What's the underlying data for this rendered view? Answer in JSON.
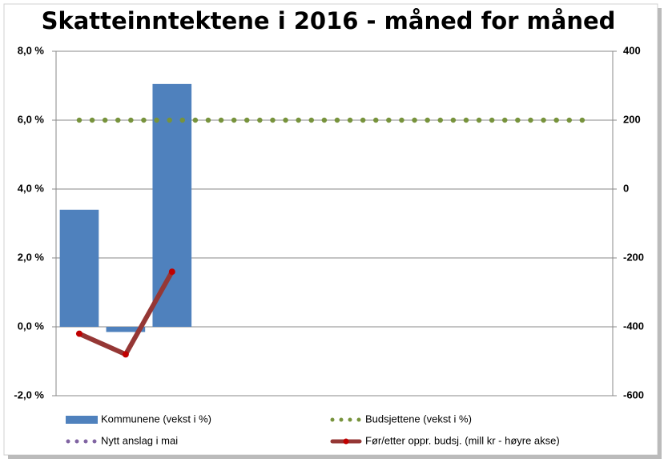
{
  "chart_data": {
    "type": "bar",
    "title": "Skatteinntektene i 2016 - måned for måned",
    "categories": [
      null,
      null,
      null,
      null,
      null,
      null,
      null,
      null,
      null,
      null,
      null,
      null
    ],
    "series": [
      {
        "name": "Kommunene (vekst i %)",
        "type": "bar",
        "color": "#4f81bd",
        "values": [
          3.4,
          -0.15,
          7.05,
          null,
          null,
          null,
          null,
          null,
          null,
          null,
          null,
          null
        ]
      },
      {
        "name": "Budsjettene (vekst i %)",
        "type": "line",
        "style": "dotted",
        "color": "#77933c",
        "values": [
          6.0,
          6.0,
          6.0,
          6.0,
          6.0,
          6.0,
          6.0,
          6.0,
          6.0,
          6.0,
          6.0,
          6.0
        ]
      },
      {
        "name": "Nytt anslag i mai",
        "type": "line",
        "style": "dotted",
        "color": "#8064a2",
        "values": [
          null,
          null,
          null,
          null,
          null,
          null,
          null,
          null,
          null,
          null,
          null,
          null
        ]
      },
      {
        "name": "Før/etter oppr. budsj. (mill kr - høyre akse)",
        "type": "line",
        "style": "solid",
        "axis": "y2",
        "color": "#953735",
        "marker_color": "#c00000",
        "values": [
          -420,
          -480,
          -240,
          null,
          null,
          null,
          null,
          null,
          null,
          null,
          null,
          null
        ]
      }
    ],
    "ylim": [
      -2.0,
      8.0
    ],
    "yticks": [
      {
        "value": -2.0,
        "label": "-2,0 %"
      },
      {
        "value": 0.0,
        "label": "0,0 %"
      },
      {
        "value": 2.0,
        "label": "2,0 %"
      },
      {
        "value": 4.0,
        "label": "4,0 %"
      },
      {
        "value": 6.0,
        "label": "6,0 %"
      },
      {
        "value": 8.0,
        "label": "8,0 %"
      }
    ],
    "y2lim": [
      -600,
      400
    ],
    "y2ticks": [
      -600,
      -400,
      -200,
      0,
      200,
      400
    ],
    "grid": true,
    "legend": "bottom"
  }
}
